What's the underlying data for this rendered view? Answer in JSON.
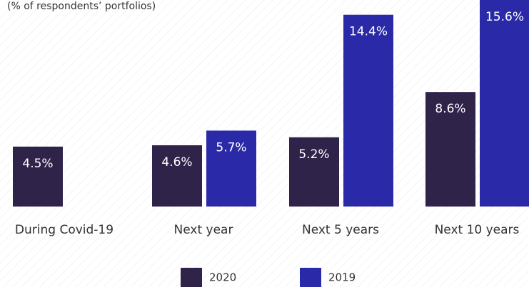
{
  "chart_data": {
    "type": "bar",
    "subtitle": "(% of respondents’ portfolios)",
    "categories": [
      "During Covid-19",
      "Next year",
      "Next 5 years",
      "Next 10 years"
    ],
    "series": [
      {
        "name": "2020",
        "color": "#30234a",
        "values": [
          4.5,
          4.6,
          5.2,
          8.6
        ],
        "value_labels": [
          "4.5%",
          "4.6%",
          "5.2%",
          "8.6%"
        ]
      },
      {
        "name": "2019",
        "color": "#2a2aa8",
        "values": [
          null,
          5.7,
          14.4,
          15.6
        ],
        "value_labels": [
          null,
          "5.7%",
          "14.4%",
          "15.6%"
        ]
      }
    ]
  }
}
